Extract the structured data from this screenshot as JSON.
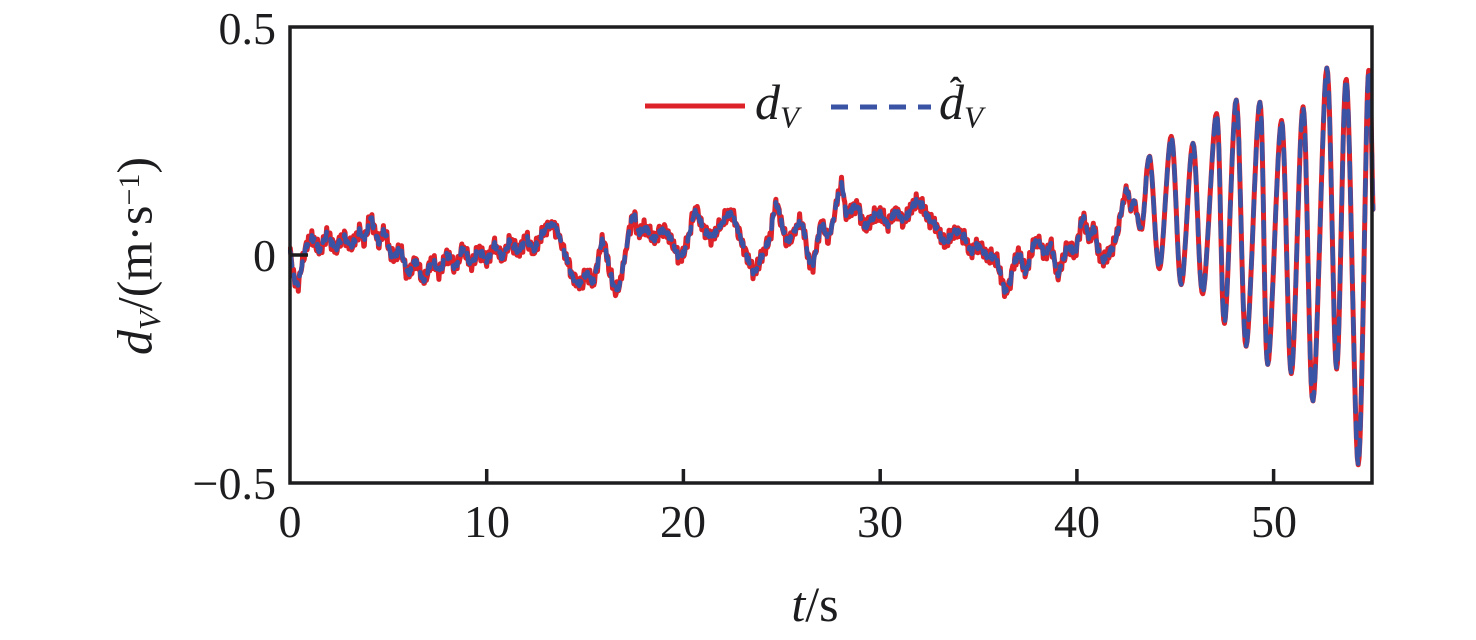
{
  "figure": {
    "background": "#ffffff",
    "axis_color": "#1d1d1f"
  },
  "chart_data": {
    "type": "line",
    "title": "",
    "xlabel": "t/s",
    "ylabel": "d_V/(m·s⁻¹)",
    "xlabel_parts": {
      "var": "t",
      "unit": "/s"
    },
    "ylabel_parts": {
      "var": "d",
      "var_sub": "V",
      "prefix": "/(m·s",
      "sup": "−1",
      "suffix": ")"
    },
    "xlim": [
      0,
      55
    ],
    "ylim": [
      -0.5,
      0.5
    ],
    "xtick_values": [
      0,
      10,
      20,
      30,
      40,
      50
    ],
    "xtick_labels": [
      "0",
      "10",
      "20",
      "30",
      "40",
      "50"
    ],
    "ytick_values": [
      0.5,
      0,
      -0.5
    ],
    "ytick_labels": [
      "0.5",
      "0",
      "−0.5"
    ],
    "grid": false,
    "legend": {
      "position": "top-center",
      "box": false,
      "entries": [
        {
          "label_var": "d",
          "label_sub": "V",
          "hat": "",
          "color": "#dd2229",
          "style": "solid"
        },
        {
          "label_var": "d",
          "label_sub": "V",
          "hat": "ˆ",
          "color": "#3a53a4",
          "style": "dashed"
        }
      ]
    },
    "series": [
      {
        "name": "d_V",
        "color": "#dd2229",
        "style": "solid",
        "width": 5,
        "noise_amplitude": 0.011
      },
      {
        "name": "d_hat_V",
        "color": "#3a53a4",
        "style": "dashed",
        "dash": "15 11",
        "width": 4.5,
        "noise_amplitude": 0.005,
        "note": "estimate, overlaps d_V almost exactly"
      }
    ],
    "noise": {
      "amplitude": 0.011,
      "fade_start": 42,
      "fade_end": 44
    },
    "points": [
      [
        0,
        0.005
      ],
      [
        0.35,
        -0.065
      ],
      [
        0.8,
        0.015
      ],
      [
        1.2,
        0.035
      ],
      [
        1.5,
        0.01
      ],
      [
        1.9,
        0.045
      ],
      [
        2.3,
        0.015
      ],
      [
        2.7,
        0.04
      ],
      [
        3.1,
        0.02
      ],
      [
        3.5,
        0.05
      ],
      [
        3.8,
        0.035
      ],
      [
        4.1,
        0.08
      ],
      [
        4.5,
        0.03
      ],
      [
        4.8,
        0.05
      ],
      [
        5.2,
        -0.005
      ],
      [
        5.6,
        0.01
      ],
      [
        6,
        -0.04
      ],
      [
        6.4,
        -0.015
      ],
      [
        6.8,
        -0.055
      ],
      [
        7.2,
        -0.015
      ],
      [
        7.6,
        -0.035
      ],
      [
        8,
        0
      ],
      [
        8.4,
        -0.025
      ],
      [
        8.8,
        0.012
      ],
      [
        9.2,
        -0.02
      ],
      [
        9.6,
        0.01
      ],
      [
        10,
        -0.01
      ],
      [
        10.4,
        0.02
      ],
      [
        10.8,
        -0.005
      ],
      [
        11.2,
        0.03
      ],
      [
        11.6,
        0.008
      ],
      [
        12,
        0.035
      ],
      [
        12.4,
        0.012
      ],
      [
        12.8,
        0.045
      ],
      [
        13.4,
        0.065
      ],
      [
        14,
        0
      ],
      [
        14.4,
        -0.05
      ],
      [
        14.8,
        -0.062
      ],
      [
        15.1,
        -0.04
      ],
      [
        15.45,
        -0.055
      ],
      [
        15.9,
        0.03
      ],
      [
        16.3,
        -0.045
      ],
      [
        16.7,
        -0.072
      ],
      [
        17.4,
        0.082
      ],
      [
        17.7,
        0.05
      ],
      [
        18.1,
        0.06
      ],
      [
        18.5,
        0.035
      ],
      [
        18.9,
        0.055
      ],
      [
        19.3,
        0.04
      ],
      [
        19.8,
        -0.005
      ],
      [
        20.2,
        0.03
      ],
      [
        20.6,
        0.095
      ],
      [
        21,
        0.06
      ],
      [
        21.4,
        0.04
      ],
      [
        21.8,
        0.06
      ],
      [
        22.4,
        0.09
      ],
      [
        22.8,
        0.05
      ],
      [
        23.2,
        0
      ],
      [
        23.6,
        -0.035
      ],
      [
        24,
        0
      ],
      [
        24.4,
        0.04
      ],
      [
        24.7,
        0.11
      ],
      [
        25.1,
        0.05
      ],
      [
        25.4,
        0.033
      ],
      [
        26,
        0.07
      ],
      [
        26.5,
        -0.025
      ],
      [
        27,
        0.065
      ],
      [
        27.4,
        0.04
      ],
      [
        28,
        0.15
      ],
      [
        28.3,
        0.09
      ],
      [
        28.8,
        0.11
      ],
      [
        29.2,
        0.065
      ],
      [
        29.6,
        0.08
      ],
      [
        30,
        0.09
      ],
      [
        30.4,
        0.07
      ],
      [
        30.8,
        0.095
      ],
      [
        31.2,
        0.075
      ],
      [
        31.6,
        0.105
      ],
      [
        32,
        0.115
      ],
      [
        32.4,
        0.085
      ],
      [
        32.8,
        0.065
      ],
      [
        33.3,
        0.025
      ],
      [
        33.7,
        0.05
      ],
      [
        34.2,
        0.045
      ],
      [
        34.6,
        0.01
      ],
      [
        35,
        0.02
      ],
      [
        35.5,
        -0.005
      ],
      [
        35.9,
        -0.01
      ],
      [
        36.4,
        -0.08
      ],
      [
        36.8,
        -0.02
      ],
      [
        37.1,
        0
      ],
      [
        37.4,
        -0.035
      ],
      [
        37.9,
        0.03
      ],
      [
        38.4,
        0.005
      ],
      [
        38.7,
        0.02
      ],
      [
        39,
        -0.04
      ],
      [
        39.3,
        -0.01
      ],
      [
        39.6,
        0.02
      ],
      [
        39.9,
        0.005
      ],
      [
        40.3,
        0.08
      ],
      [
        40.6,
        0.04
      ],
      [
        40.9,
        0.055
      ],
      [
        41.1,
        0.005
      ],
      [
        41.4,
        -0.01
      ],
      [
        41.7,
        0.01
      ],
      [
        42,
        0.04
      ],
      [
        42.5,
        0.14
      ],
      [
        42.75,
        0.1
      ],
      [
        42.9,
        0.12
      ],
      [
        43.3,
        0.06
      ],
      [
        43.7,
        0.215
      ],
      [
        44.2,
        -0.03
      ],
      [
        44.8,
        0.26
      ],
      [
        45.3,
        -0.065
      ],
      [
        45.9,
        0.245
      ],
      [
        46.4,
        -0.085
      ],
      [
        47.1,
        0.31
      ],
      [
        47.5,
        -0.15
      ],
      [
        48.1,
        0.34
      ],
      [
        48.6,
        -0.2
      ],
      [
        49.3,
        0.335
      ],
      [
        49.7,
        -0.24
      ],
      [
        50.4,
        0.295
      ],
      [
        50.9,
        -0.26
      ],
      [
        51.5,
        0.325
      ],
      [
        52,
        -0.32
      ],
      [
        52.7,
        0.41
      ],
      [
        53.2,
        -0.25
      ],
      [
        53.7,
        0.385
      ],
      [
        54.3,
        -0.46
      ],
      [
        54.8,
        0.39
      ],
      [
        55.05,
        0.1
      ]
    ]
  }
}
